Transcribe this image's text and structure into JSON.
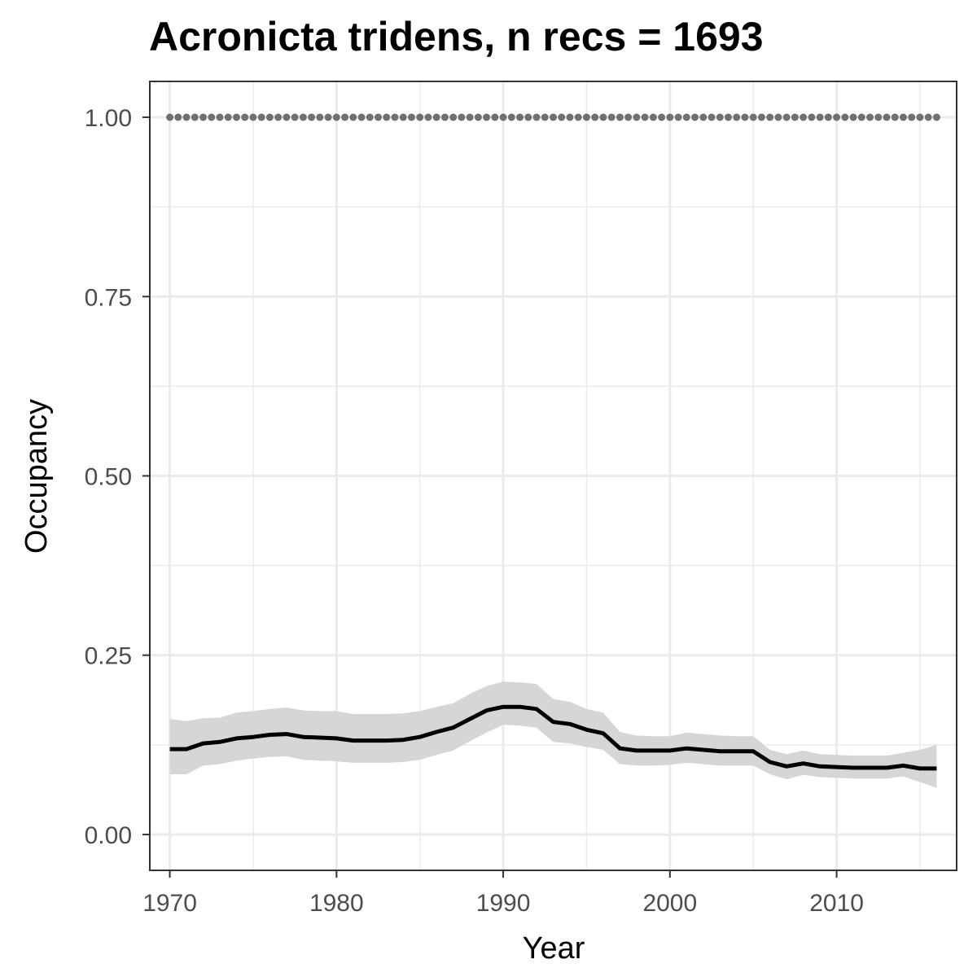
{
  "chart_data": {
    "type": "line",
    "title": "Acronicta tridens, n recs = 1693",
    "xlabel": "Year",
    "ylabel": "Occupancy",
    "xlim": [
      1968.8,
      2017.2
    ],
    "ylim": [
      -0.05,
      1.05
    ],
    "x_ticks": [
      1970,
      1980,
      1990,
      2000,
      2010
    ],
    "x_tick_labels": [
      "1970",
      "1980",
      "1990",
      "2000",
      "2010"
    ],
    "y_ticks": [
      0,
      0.25,
      0.5,
      0.75,
      1.0
    ],
    "y_tick_labels": [
      "0.00",
      "0.25",
      "0.50",
      "0.75",
      "1.00"
    ],
    "grid": true,
    "legend": "none",
    "colors": {
      "line": "#000000",
      "ribbon": "#d6d6d6",
      "dots": "#707070",
      "grid": "#ebebeb",
      "border": "#333333"
    },
    "x": [
      1970,
      1971,
      1972,
      1973,
      1974,
      1975,
      1976,
      1977,
      1978,
      1979,
      1980,
      1981,
      1982,
      1983,
      1984,
      1985,
      1986,
      1987,
      1988,
      1989,
      1990,
      1991,
      1992,
      1993,
      1994,
      1995,
      1996,
      1997,
      1998,
      1999,
      2000,
      2001,
      2002,
      2003,
      2004,
      2005,
      2006,
      2007,
      2008,
      2009,
      2010,
      2011,
      2012,
      2013,
      2014,
      2015,
      2016
    ],
    "series": [
      {
        "values": [
          0.119,
          0.119,
          0.127,
          0.129,
          0.134,
          0.136,
          0.139,
          0.14,
          0.136,
          0.135,
          0.134,
          0.131,
          0.131,
          0.131,
          0.132,
          0.136,
          0.143,
          0.149,
          0.161,
          0.173,
          0.178,
          0.178,
          0.175,
          0.157,
          0.154,
          0.146,
          0.141,
          0.12,
          0.117,
          0.117,
          0.117,
          0.12,
          0.118,
          0.116,
          0.116,
          0.116,
          0.101,
          0.095,
          0.099,
          0.095,
          0.094,
          0.093,
          0.093,
          0.093,
          0.096,
          0.092,
          0.092
        ],
        "lower": [
          0.084,
          0.084,
          0.096,
          0.098,
          0.103,
          0.106,
          0.108,
          0.109,
          0.104,
          0.103,
          0.102,
          0.1,
          0.1,
          0.1,
          0.101,
          0.104,
          0.111,
          0.117,
          0.13,
          0.142,
          0.153,
          0.152,
          0.149,
          0.129,
          0.127,
          0.122,
          0.118,
          0.098,
          0.096,
          0.096,
          0.097,
          0.1,
          0.098,
          0.096,
          0.096,
          0.096,
          0.084,
          0.077,
          0.083,
          0.08,
          0.079,
          0.078,
          0.078,
          0.078,
          0.081,
          0.073,
          0.065
        ],
        "upper": [
          0.161,
          0.158,
          0.162,
          0.163,
          0.17,
          0.172,
          0.175,
          0.177,
          0.173,
          0.172,
          0.172,
          0.168,
          0.168,
          0.168,
          0.169,
          0.172,
          0.178,
          0.183,
          0.196,
          0.207,
          0.213,
          0.212,
          0.21,
          0.189,
          0.185,
          0.175,
          0.17,
          0.143,
          0.138,
          0.137,
          0.137,
          0.142,
          0.14,
          0.138,
          0.137,
          0.137,
          0.118,
          0.112,
          0.117,
          0.112,
          0.111,
          0.11,
          0.11,
          0.11,
          0.114,
          0.118,
          0.125
        ]
      },
      {
        "values": [
          1,
          1,
          1,
          1,
          1,
          1,
          1,
          1,
          1,
          1,
          1,
          1,
          1,
          1,
          1,
          1,
          1,
          1,
          1,
          1,
          1,
          1,
          1,
          1,
          1,
          1,
          1,
          1,
          1,
          1,
          1,
          1,
          1,
          1,
          1,
          1,
          1,
          1,
          1,
          1,
          1,
          1,
          1,
          1,
          1,
          1,
          1
        ]
      }
    ],
    "dots_x": [
      1970,
      1970.5,
      1971,
      1971.5,
      1972,
      1972.5,
      1973,
      1973.5,
      1974,
      1974.5,
      1975,
      1975.5,
      1976,
      1976.5,
      1977,
      1977.5,
      1978,
      1978.5,
      1979,
      1979.5,
      1980,
      1980.5,
      1981,
      1981.5,
      1982,
      1982.5,
      1983,
      1983.5,
      1984,
      1984.5,
      1985,
      1985.5,
      1986,
      1986.5,
      1987,
      1987.5,
      1988,
      1988.5,
      1989,
      1989.5,
      1990,
      1990.5,
      1991,
      1991.5,
      1992,
      1992.5,
      1993,
      1993.5,
      1994,
      1994.5,
      1995,
      1995.5,
      1996,
      1996.5,
      1997,
      1997.5,
      1998,
      1998.5,
      1999,
      1999.5,
      2000,
      2000.5,
      2001,
      2001.5,
      2002,
      2002.5,
      2003,
      2003.5,
      2004,
      2004.5,
      2005,
      2005.5,
      2006,
      2006.5,
      2007,
      2007.5,
      2008,
      2008.5,
      2009,
      2009.5,
      2010,
      2010.5,
      2011,
      2011.5,
      2012,
      2012.5,
      2013,
      2013.5,
      2014,
      2014.5,
      2015,
      2015.5,
      2016
    ]
  }
}
